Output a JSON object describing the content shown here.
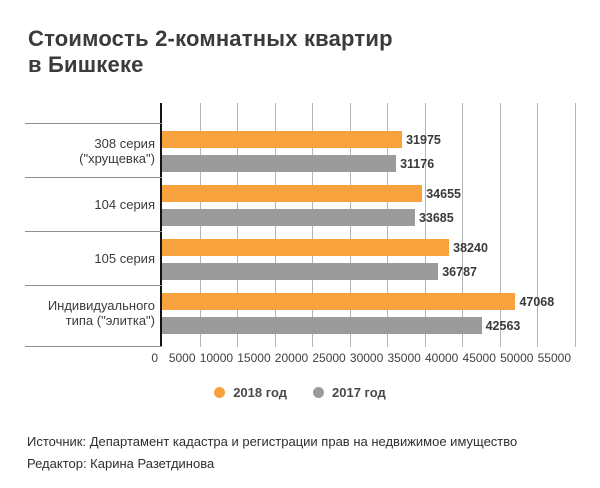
{
  "page": {
    "title_line1": "Стоимость 2-комнатных квартир",
    "title_line2": "в Бишкеке",
    "footer": {
      "source": "Источник: Департамент кадастра и регистрации прав на недвижимое имущество",
      "editor": "Редактор: Карина Разетдинова"
    }
  },
  "colors": {
    "series_2018": "#f8a23d",
    "series_2017": "#9b9b9b",
    "axis_line": "#141414",
    "gridline": "#b4b4b4",
    "divider": "#8f8f8f",
    "title_text": "#3b3b3b",
    "footer_text": "#2f2f2f"
  },
  "chart_data": {
    "type": "bar",
    "orientation": "horizontal",
    "title": "Стоимость 2-комнатных квартир в Бишкеке",
    "categories": [
      "308 серия (\"хрущевка\")",
      "104 серия",
      "105 серия",
      "Индивидуального типа (\"элитка\")"
    ],
    "series": [
      {
        "name": "2018 год",
        "color": "#f8a23d",
        "values": [
          31975,
          34655,
          38240,
          47068
        ]
      },
      {
        "name": "2017 год",
        "color": "#9b9b9b",
        "values": [
          31176,
          33685,
          36787,
          42563
        ]
      }
    ],
    "xlabel": "",
    "ylabel": "",
    "xlim": [
      0,
      55000
    ],
    "x_ticks": [
      0,
      5000,
      10000,
      15000,
      20000,
      25000,
      30000,
      35000,
      40000,
      45000,
      50000,
      55000
    ],
    "grid": "vertical",
    "value_labels": true,
    "legend_position": "bottom-center"
  }
}
